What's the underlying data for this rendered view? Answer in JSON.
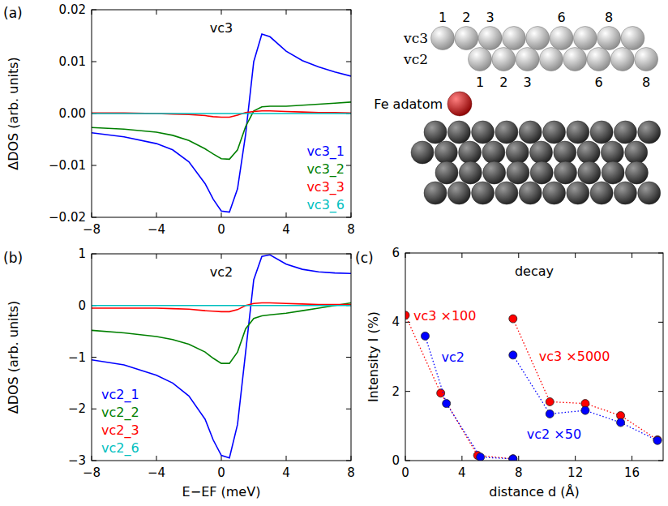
{
  "chart_data": [
    {
      "type": "line",
      "panel_label": "(a)",
      "title": "vc3",
      "y_label": "ΔDOS (arb. units)",
      "x": [
        -8,
        -6,
        -4,
        -3,
        -2,
        -1,
        -0.5,
        0,
        0.5,
        1,
        1.5,
        2,
        2.5,
        3,
        4,
        5,
        6,
        7,
        8
      ],
      "xlim": [
        -8,
        8
      ],
      "xticks": [
        {
          "value": -8,
          "label": "−8"
        },
        {
          "value": -4,
          "label": "−4"
        },
        0,
        4,
        8
      ],
      "ylim": [
        -0.02,
        0.02
      ],
      "yticks": [
        {
          "value": -0.02,
          "label": "−0.02"
        },
        {
          "value": -0.01,
          "label": "−0.01"
        },
        {
          "value": 0,
          "label": "0.00"
        },
        0.01,
        0.02
      ],
      "legend": "lower right",
      "series": [
        {
          "name": "vc3_1",
          "color": "#0000ff",
          "values": [
            -0.0037,
            -0.0045,
            -0.0058,
            -0.007,
            -0.0093,
            -0.0135,
            -0.0165,
            -0.0188,
            -0.019,
            -0.0145,
            -0.004,
            0.01,
            0.0153,
            0.0148,
            0.012,
            0.0102,
            0.009,
            0.008,
            0.0072
          ]
        },
        {
          "name": "vc3_2",
          "color": "#008000",
          "values": [
            -0.0027,
            -0.003,
            -0.0036,
            -0.0042,
            -0.0052,
            -0.0068,
            -0.0078,
            -0.0087,
            -0.0088,
            -0.007,
            -0.0025,
            0.0005,
            0.0013,
            0.0014,
            0.0014,
            0.0016,
            0.0018,
            0.002,
            0.0022
          ]
        },
        {
          "name": "vc3_3",
          "color": "#ff0000",
          "values": [
            0.0001,
            0.0001,
            0,
            -0.0001,
            -0.0002,
            -0.0004,
            -0.0006,
            -0.0007,
            -0.0007,
            -0.0003,
            0.0002,
            0.0004,
            0.0005,
            0.0005,
            0.0004,
            0.0003,
            0.0002,
            0.0002,
            0.0001
          ]
        },
        {
          "name": "vc3_6",
          "color": "#00bfbf",
          "values": [
            0,
            0,
            0,
            0,
            0,
            0,
            0,
            0,
            0,
            0,
            0,
            0,
            0,
            0,
            0,
            0,
            0,
            0,
            0
          ]
        }
      ]
    },
    {
      "type": "line",
      "panel_label": "(b)",
      "title": "vc2",
      "y_label": "ΔDOS (arb. units)",
      "x_label": "E−EF (meV)",
      "x": [
        -8,
        -6,
        -4,
        -3,
        -2,
        -1,
        -0.5,
        0,
        0.5,
        1,
        1.5,
        2,
        2.5,
        3,
        4,
        5,
        6,
        7,
        8
      ],
      "xlim": [
        -8,
        8
      ],
      "xticks": [
        {
          "value": -8,
          "label": "−8"
        },
        {
          "value": -4,
          "label": "−4"
        },
        0,
        4,
        8
      ],
      "ylim": [
        -3,
        1
      ],
      "yticks": [
        {
          "value": -3,
          "label": "−3"
        },
        {
          "value": -2,
          "label": "−2"
        },
        {
          "value": -1,
          "label": "−1"
        },
        0,
        1
      ],
      "legend": "lower left",
      "series": [
        {
          "name": "vc2_1",
          "color": "#0000ff",
          "values": [
            -1.05,
            -1.15,
            -1.35,
            -1.5,
            -1.75,
            -2.2,
            -2.6,
            -2.9,
            -2.95,
            -2.3,
            -0.9,
            0.5,
            0.95,
            0.98,
            0.8,
            0.7,
            0.65,
            0.63,
            0.62
          ]
        },
        {
          "name": "vc2_2",
          "color": "#008000",
          "values": [
            -0.48,
            -0.53,
            -0.6,
            -0.66,
            -0.75,
            -0.9,
            -1.02,
            -1.12,
            -1.12,
            -0.9,
            -0.45,
            -0.25,
            -0.2,
            -0.18,
            -0.15,
            -0.1,
            -0.05,
            0,
            0.05
          ]
        },
        {
          "name": "vc2_3",
          "color": "#ff0000",
          "values": [
            -0.05,
            -0.05,
            -0.05,
            -0.06,
            -0.07,
            -0.1,
            -0.11,
            -0.12,
            -0.12,
            -0.08,
            0,
            0.04,
            0.05,
            0.05,
            0.04,
            0.03,
            0.02,
            0.02,
            0.02
          ]
        },
        {
          "name": "vc2_6",
          "color": "#00bfbf",
          "values": [
            0,
            0,
            0,
            0,
            0,
            0,
            0,
            0,
            0,
            0,
            0,
            0,
            0,
            0,
            0,
            0,
            0,
            0,
            0
          ]
        }
      ]
    },
    {
      "type": "scatter",
      "panel_label": "(c)",
      "title": "decay",
      "y_label": "Intensity I (%)",
      "x_label": "distance d (Å)",
      "xlim": [
        0,
        18.2
      ],
      "xticks": [
        0,
        4,
        8,
        12,
        16
      ],
      "ylim": [
        0,
        6
      ],
      "yticks": [
        0,
        2,
        4,
        6
      ],
      "series": [
        {
          "name": "vc3 ×100",
          "color": "#ff0000",
          "marker": "circle",
          "line_style": "dotted",
          "x": [
            0,
            2.5,
            5.1,
            7.6
          ],
          "values": [
            4.2,
            1.95,
            0.15,
            0.05
          ]
        },
        {
          "name": "vc2",
          "color": "#0000ff",
          "marker": "circle",
          "line_style": "dotted",
          "x": [
            1.4,
            2.9,
            5.3,
            7.6
          ],
          "values": [
            3.6,
            1.65,
            0.1,
            0.05
          ]
        },
        {
          "name": "vc3 ×5000",
          "color": "#ff0000",
          "marker": "circle",
          "line_style": "dotted",
          "x": [
            7.6,
            10.2,
            12.7,
            15.2,
            17.8
          ],
          "values": [
            4.1,
            1.7,
            1.65,
            1.3,
            0.6
          ]
        },
        {
          "name": "vc2 ×50",
          "color": "#0000ff",
          "marker": "circle",
          "line_style": "dotted",
          "x": [
            7.6,
            10.2,
            12.7,
            15.2,
            17.8
          ],
          "values": [
            3.05,
            1.35,
            1.45,
            1.1,
            0.58
          ]
        }
      ]
    }
  ],
  "diagram": {
    "rows": [
      {
        "label": "vc3",
        "numbers": [
          1,
          2,
          3,
          6,
          8
        ]
      },
      {
        "label": "vc2",
        "numbers": [
          1,
          2,
          3,
          6,
          8
        ]
      }
    ],
    "adatom": "Fe adatom"
  }
}
